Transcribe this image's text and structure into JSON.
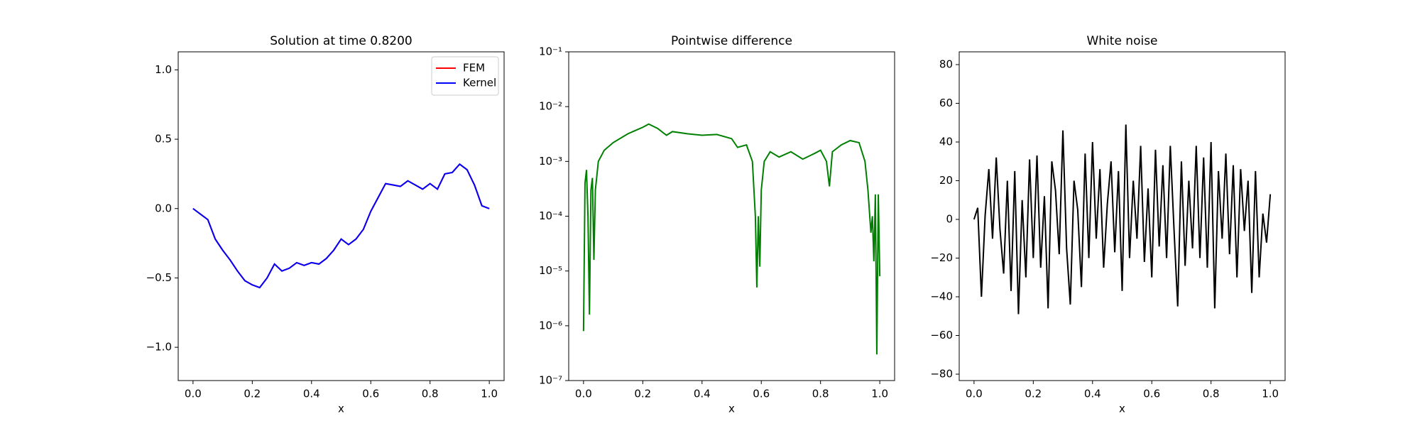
{
  "chart_data": [
    {
      "type": "line",
      "title": "Solution at time 0.8200",
      "xlabel": "x",
      "legend": "upper right",
      "x": [
        0,
        0.025,
        0.05,
        0.075,
        0.1,
        0.125,
        0.15,
        0.175,
        0.2,
        0.225,
        0.25,
        0.275,
        0.3,
        0.325,
        0.35,
        0.375,
        0.4,
        0.425,
        0.45,
        0.475,
        0.5,
        0.525,
        0.55,
        0.575,
        0.6,
        0.625,
        0.65,
        0.675,
        0.7,
        0.725,
        0.75,
        0.775,
        0.8,
        0.825,
        0.85,
        0.875,
        0.9,
        0.925,
        0.95,
        0.975,
        1.0
      ],
      "series": [
        {
          "name": "FEM",
          "color": "#ff0000",
          "values": [
            0.0,
            -0.04,
            -0.08,
            -0.22,
            -0.3,
            -0.37,
            -0.45,
            -0.52,
            -0.55,
            -0.57,
            -0.5,
            -0.4,
            -0.45,
            -0.43,
            -0.39,
            -0.41,
            -0.39,
            -0.4,
            -0.36,
            -0.3,
            -0.22,
            -0.26,
            -0.22,
            -0.15,
            -0.02,
            0.08,
            0.18,
            0.17,
            0.16,
            0.2,
            0.17,
            0.14,
            0.18,
            0.14,
            0.25,
            0.26,
            0.32,
            0.28,
            0.17,
            0.02,
            0.0
          ]
        },
        {
          "name": "Kernel",
          "color": "#0000ff",
          "values": [
            0.0,
            -0.04,
            -0.08,
            -0.22,
            -0.3,
            -0.37,
            -0.45,
            -0.52,
            -0.55,
            -0.57,
            -0.5,
            -0.4,
            -0.45,
            -0.43,
            -0.39,
            -0.41,
            -0.39,
            -0.4,
            -0.36,
            -0.3,
            -0.22,
            -0.26,
            -0.22,
            -0.15,
            -0.02,
            0.08,
            0.18,
            0.17,
            0.16,
            0.2,
            0.17,
            0.14,
            0.18,
            0.14,
            0.25,
            0.26,
            0.32,
            0.28,
            0.17,
            0.02,
            0.0
          ]
        }
      ],
      "xlim": [
        -0.05,
        1.05
      ],
      "ylim": [
        -1.24,
        1.13
      ],
      "xticks": [
        {
          "value": 0,
          "label": "0.0"
        },
        {
          "value": 0.2,
          "label": "0.2"
        },
        {
          "value": 0.4,
          "label": "0.4"
        },
        {
          "value": 0.6,
          "label": "0.6"
        },
        {
          "value": 0.8,
          "label": "0.8"
        },
        {
          "value": 1,
          "label": "1.0"
        }
      ],
      "yticks": [
        {
          "value": -1,
          "label": "−1.0"
        },
        {
          "value": -0.5,
          "label": "−0.5"
        },
        {
          "value": 0,
          "label": "0.0"
        },
        0.5,
        {
          "value": 1,
          "label": "1.0"
        }
      ]
    },
    {
      "type": "line",
      "title": "Pointwise difference",
      "xlabel": "x",
      "yscale": "log",
      "x": [
        0,
        0.005,
        0.01,
        0.015,
        0.02,
        0.025,
        0.03,
        0.035,
        0.04,
        0.05,
        0.07,
        0.1,
        0.15,
        0.2,
        0.22,
        0.25,
        0.28,
        0.3,
        0.35,
        0.4,
        0.45,
        0.5,
        0.52,
        0.55,
        0.57,
        0.58,
        0.585,
        0.59,
        0.595,
        0.6,
        0.61,
        0.63,
        0.66,
        0.7,
        0.74,
        0.78,
        0.8,
        0.82,
        0.83,
        0.84,
        0.87,
        0.9,
        0.93,
        0.95,
        0.96,
        0.97,
        0.975,
        0.98,
        0.985,
        0.99,
        0.995,
        1.0
      ],
      "series": [
        {
          "color": "#008000",
          "values": [
            8e-07,
            0.0004,
            0.0007,
            0.0001,
            1.6e-06,
            0.0003,
            0.0005,
            1.6e-05,
            0.0003,
            0.001,
            0.0016,
            0.0022,
            0.0032,
            0.0042,
            0.0048,
            0.004,
            0.003,
            0.0035,
            0.0032,
            0.003,
            0.0031,
            0.0026,
            0.0018,
            0.002,
            0.001,
            0.0001,
            5e-06,
            0.0001,
            1.2e-05,
            0.0003,
            0.001,
            0.0015,
            0.0012,
            0.0015,
            0.0011,
            0.0014,
            0.0016,
            0.001,
            0.00035,
            0.0015,
            0.002,
            0.0024,
            0.0022,
            0.001,
            0.0003,
            5e-05,
            0.0001,
            1.5e-05,
            0.00025,
            3e-07,
            0.00025,
            8e-06
          ]
        }
      ],
      "xlim": [
        -0.05,
        1.05
      ],
      "ylim": [
        1e-07,
        0.1
      ],
      "xticks": [
        {
          "value": 0,
          "label": "0.0"
        },
        {
          "value": 0.2,
          "label": "0.2"
        },
        {
          "value": 0.4,
          "label": "0.4"
        },
        {
          "value": 0.6,
          "label": "0.6"
        },
        {
          "value": 0.8,
          "label": "0.8"
        },
        {
          "value": 1,
          "label": "1.0"
        }
      ],
      "yticks": [
        {
          "value": 1e-07,
          "label": "10⁻⁷"
        },
        {
          "value": 1e-06,
          "label": "10⁻⁶"
        },
        {
          "value": 1e-05,
          "label": "10⁻⁵"
        },
        {
          "value": 0.0001,
          "label": "10⁻⁴"
        },
        {
          "value": 0.001,
          "label": "10⁻³"
        },
        {
          "value": 0.01,
          "label": "10⁻²"
        },
        {
          "value": 0.1,
          "label": "10⁻¹"
        }
      ]
    },
    {
      "type": "line",
      "title": "White noise",
      "xlabel": "x",
      "x": [
        0,
        0.0125,
        0.025,
        0.0375,
        0.05,
        0.0625,
        0.075,
        0.0875,
        0.1,
        0.1125,
        0.125,
        0.1375,
        0.15,
        0.1625,
        0.175,
        0.1875,
        0.2,
        0.2125,
        0.225,
        0.2375,
        0.25,
        0.2625,
        0.275,
        0.2875,
        0.3,
        0.3125,
        0.325,
        0.3375,
        0.35,
        0.3625,
        0.375,
        0.3875,
        0.4,
        0.4125,
        0.425,
        0.4375,
        0.45,
        0.4625,
        0.475,
        0.4875,
        0.5,
        0.5125,
        0.525,
        0.5375,
        0.55,
        0.5625,
        0.575,
        0.5875,
        0.6,
        0.6125,
        0.625,
        0.6375,
        0.65,
        0.6625,
        0.675,
        0.6875,
        0.7,
        0.7125,
        0.725,
        0.7375,
        0.75,
        0.7625,
        0.775,
        0.7875,
        0.8,
        0.8125,
        0.825,
        0.8375,
        0.85,
        0.8625,
        0.875,
        0.8875,
        0.9,
        0.9125,
        0.925,
        0.9375,
        0.95,
        0.9625,
        0.975,
        0.9875,
        1.0
      ],
      "series": [
        {
          "color": "#000000",
          "values": [
            0,
            6,
            -40,
            2,
            26,
            -10,
            32,
            -5,
            -28,
            20,
            -37,
            25,
            -49,
            10,
            -30,
            31,
            -20,
            33,
            -25,
            12,
            -46,
            30,
            15,
            -18,
            46,
            -15,
            -44,
            20,
            5,
            -35,
            34,
            -20,
            40,
            -10,
            26,
            -25,
            8,
            30,
            -17,
            25,
            -37,
            49,
            -20,
            20,
            -10,
            38,
            -22,
            16,
            -30,
            36,
            -14,
            28,
            -20,
            38,
            -5,
            -45,
            30,
            -24,
            20,
            -15,
            38,
            -20,
            32,
            -25,
            40,
            -46,
            25,
            -10,
            34,
            -18,
            28,
            -30,
            26,
            -6,
            20,
            -38,
            25,
            -30,
            3,
            -12,
            13
          ]
        }
      ],
      "xlim": [
        -0.05,
        1.05
      ],
      "ylim": [
        -83.3,
        86.6
      ],
      "xticks": [
        {
          "value": 0,
          "label": "0.0"
        },
        {
          "value": 0.2,
          "label": "0.2"
        },
        {
          "value": 0.4,
          "label": "0.4"
        },
        {
          "value": 0.6,
          "label": "0.6"
        },
        {
          "value": 0.8,
          "label": "0.8"
        },
        {
          "value": 1,
          "label": "1.0"
        }
      ],
      "yticks": [
        {
          "value": -80,
          "label": "−80"
        },
        {
          "value": -60,
          "label": "−60"
        },
        {
          "value": -40,
          "label": "−40"
        },
        {
          "value": -20,
          "label": "−20"
        },
        0,
        20,
        40,
        60,
        80
      ]
    }
  ]
}
